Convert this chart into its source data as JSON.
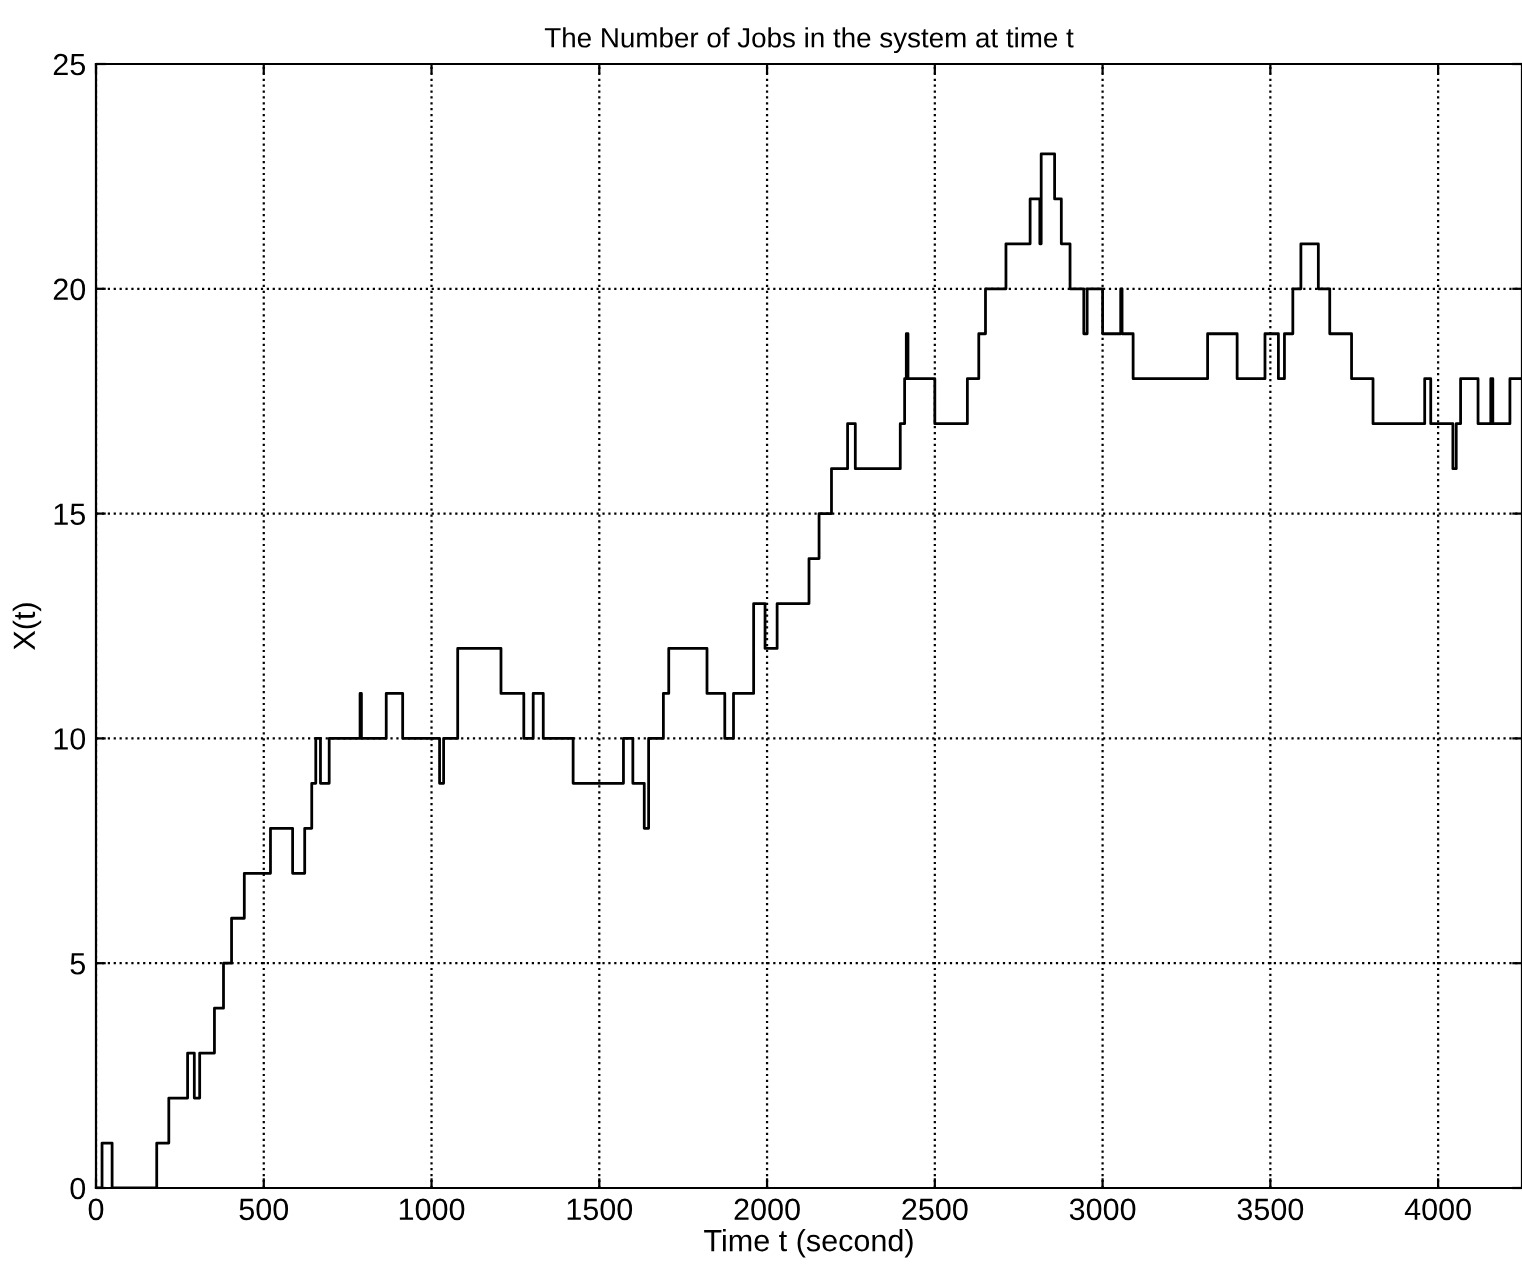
{
  "chart_data": {
    "type": "step",
    "title": "The Number of Jobs in the system at time t",
    "xlabel": "Time t (second)",
    "ylabel": "X(t)",
    "x": [
      0,
      18,
      48,
      181,
      217,
      273,
      293,
      309,
      353,
      380,
      404,
      442,
      520,
      586,
      622,
      643,
      655,
      669,
      695,
      787,
      791,
      865,
      914,
      1024,
      1036,
      1078,
      1207,
      1275,
      1303,
      1333,
      1422,
      1572,
      1600,
      1634,
      1647,
      1691,
      1707,
      1821,
      1874,
      1900,
      1960,
      1994,
      2030,
      2125,
      2155,
      2192,
      2240,
      2263,
      2397,
      2410,
      2415,
      2420,
      2500,
      2597,
      2631,
      2651,
      2712,
      2784,
      2813,
      2817,
      2857,
      2877,
      2903,
      2944,
      2954,
      3000,
      3054,
      3058,
      3091,
      3313,
      3401,
      3484,
      3524,
      3542,
      3567,
      3591,
      3643,
      3677,
      3742,
      3806,
      3960,
      3978,
      4044,
      4054,
      4067,
      4119,
      4157,
      4163,
      4214,
      4250
    ],
    "series": [
      {
        "color": "#000000",
        "values": [
          0,
          1,
          0,
          1,
          2,
          3,
          2,
          3,
          4,
          5,
          6,
          7,
          8,
          7,
          8,
          9,
          10,
          9,
          10,
          11,
          10,
          11,
          10,
          9,
          10,
          12,
          11,
          10,
          11,
          10,
          9,
          10,
          9,
          8,
          10,
          11,
          12,
          11,
          10,
          11,
          13,
          12,
          13,
          14,
          15,
          16,
          17,
          16,
          17,
          18,
          19,
          18,
          17,
          18,
          19,
          20,
          21,
          22,
          21,
          23,
          22,
          21,
          20,
          19,
          20,
          19,
          20,
          19,
          18,
          19,
          18,
          19,
          18,
          19,
          20,
          21,
          20,
          19,
          18,
          17,
          18,
          17,
          16,
          17,
          18,
          17,
          18,
          17,
          18,
          18
        ]
      }
    ],
    "xlim": [
      0,
      4250
    ],
    "ylim": [
      0,
      25
    ],
    "xticks": [
      0,
      500,
      1000,
      1500,
      2000,
      2500,
      3000,
      3500,
      4000
    ],
    "yticks": [
      0,
      5,
      10,
      15,
      20,
      25
    ],
    "grid": true,
    "line_style": "solid"
  }
}
